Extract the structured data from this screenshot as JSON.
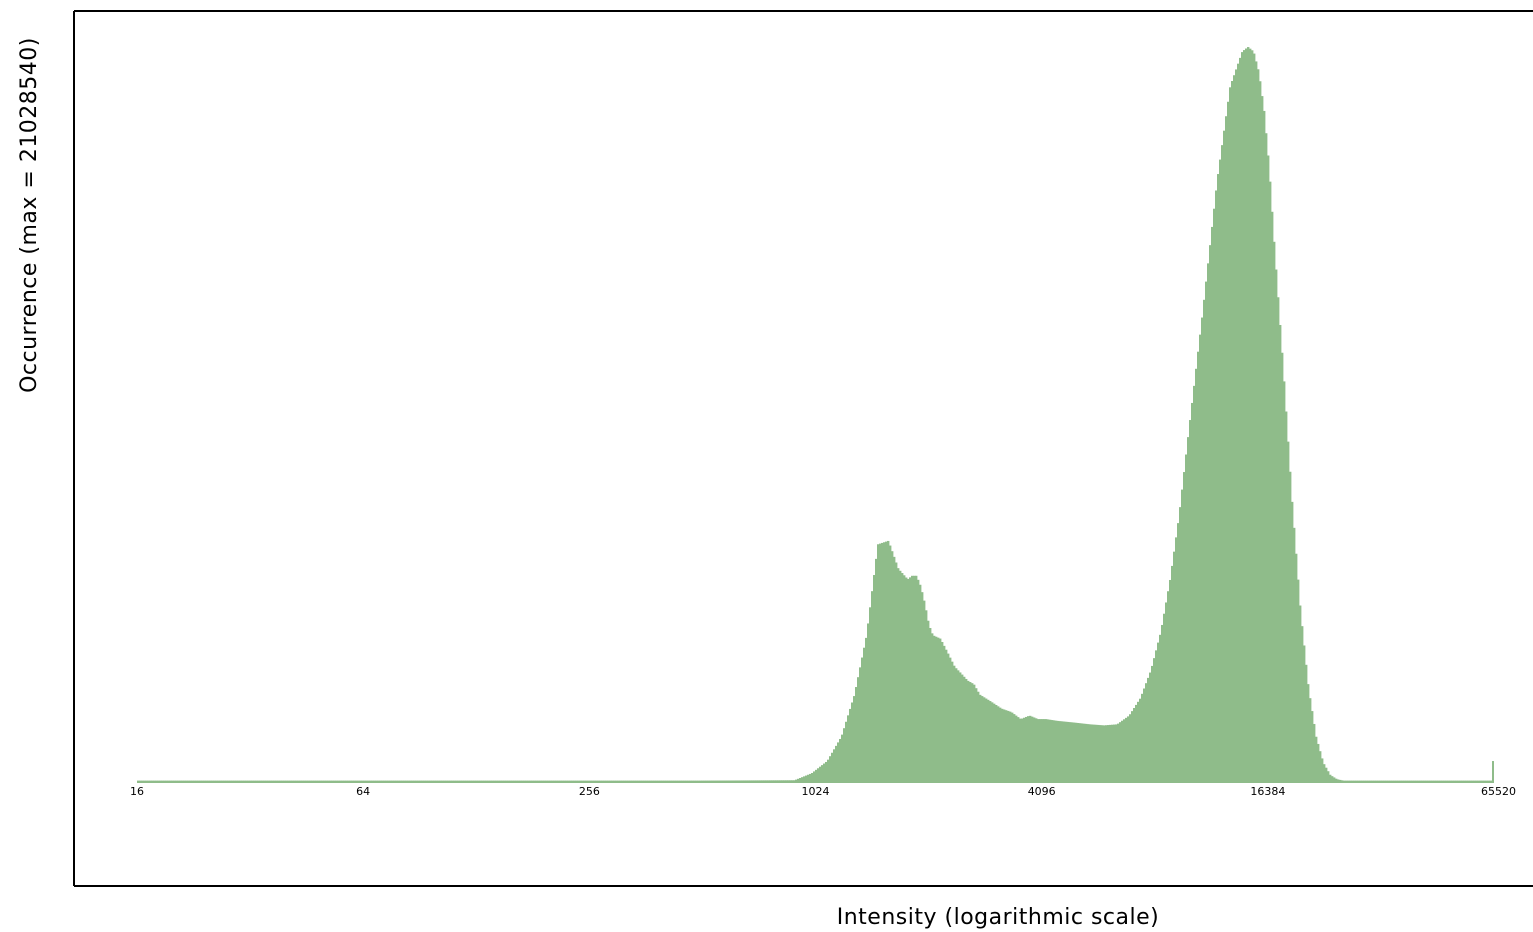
{
  "chart_data": {
    "type": "area",
    "xlabel": "Intensity (logarithmic scale)",
    "ylabel": "Occurrence (max = 21028540)",
    "y_max": 21028540,
    "xscale": "log2",
    "xlim": [
      16,
      65520
    ],
    "ylim": [
      0,
      21028540
    ],
    "x_ticks": [
      16,
      64,
      256,
      1024,
      4096,
      16384,
      65520
    ],
    "tick_labels": [
      "16",
      "64",
      "256",
      "1024",
      "4096",
      "16384",
      "65520"
    ],
    "fill_color": "#8fbc8a",
    "grid": false,
    "legend": "none",
    "series": [
      {
        "x": [
          16,
          500,
          900,
          1000,
          1100,
          1200,
          1300,
          1400,
          1500,
          1600,
          1700,
          1800,
          1850,
          1900,
          1950,
          2000,
          2050,
          2100,
          2200,
          2300,
          2400,
          2500,
          2600,
          2700,
          2800,
          3000,
          3200,
          3400,
          3600,
          3800,
          4000,
          4200,
          4500,
          5000,
          5500,
          6000,
          6500,
          7000,
          7500,
          8000,
          8500,
          9000,
          9500,
          10000,
          11000,
          12000,
          13000,
          14000,
          14500,
          15000,
          15500,
          16000,
          16500,
          17000,
          18000,
          19000,
          20000,
          21000,
          22000,
          23000,
          24000,
          25000,
          26000,
          28000,
          30000,
          35000,
          45000,
          60000,
          65000,
          65520
        ],
        "values": [
          40000,
          40000,
          50000,
          250000,
          600000,
          1300000,
          2500000,
          4200000,
          6800000,
          6900000,
          6100000,
          5800000,
          5900000,
          5900000,
          5600000,
          5100000,
          4500000,
          4200000,
          4100000,
          3700000,
          3300000,
          3100000,
          2900000,
          2800000,
          2500000,
          2300000,
          2100000,
          2000000,
          1800000,
          1900000,
          1800000,
          1800000,
          1750000,
          1700000,
          1650000,
          1620000,
          1650000,
          1900000,
          2400000,
          3200000,
          4300000,
          5800000,
          7600000,
          9700000,
          13500000,
          17200000,
          19900000,
          20900000,
          21028540,
          20900000,
          20300000,
          19200000,
          17600000,
          15500000,
          11800000,
          8000000,
          4900000,
          2700000,
          1300000,
          550000,
          200000,
          80000,
          40000,
          40000,
          40000,
          40000,
          40000,
          40000,
          40000,
          600000
        ]
      }
    ]
  }
}
